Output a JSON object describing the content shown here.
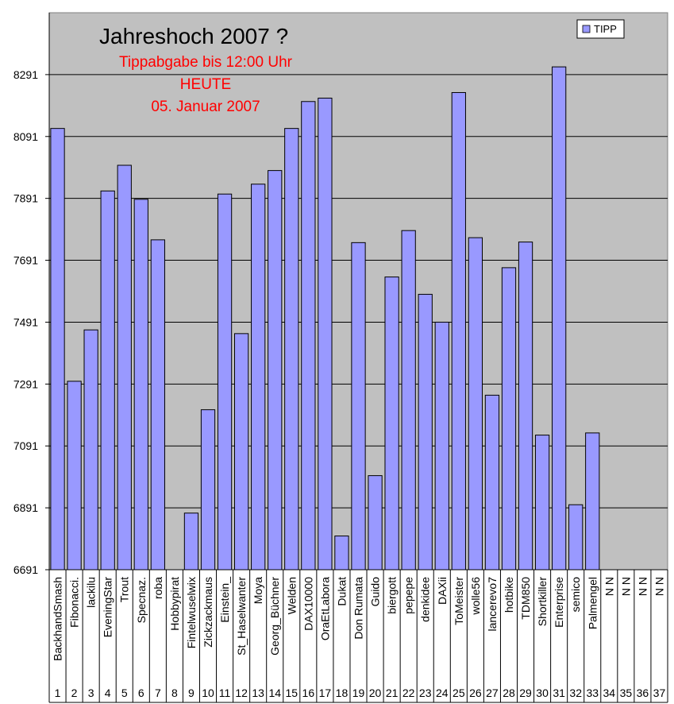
{
  "chart_data": {
    "type": "bar",
    "title": "Jahreshoch 2007 ?",
    "subtitle_lines": [
      "Tippabgabe bis 12:00 Uhr",
      "HEUTE",
      "05. Januar 2007"
    ],
    "legend": {
      "label": "TIPP",
      "position": "top-right"
    },
    "ylim": [
      6691,
      8491
    ],
    "yticks": [
      6691,
      6891,
      7091,
      7291,
      7491,
      7691,
      7891,
      8091,
      8291
    ],
    "grid": true,
    "bar_color": "#9999ff",
    "plot_bg": "#c0c0c0",
    "subtitle_color": "#ff0000",
    "categories": [
      {
        "num": "1",
        "name": "BackhandSmash",
        "value": 8117
      },
      {
        "num": "2",
        "name": "Fibonacci.",
        "value": 7300
      },
      {
        "num": "3",
        "name": "lackilu",
        "value": 7466
      },
      {
        "num": "4",
        "name": "EveningStar",
        "value": 7915
      },
      {
        "num": "5",
        "name": "Trout",
        "value": 7998
      },
      {
        "num": "6",
        "name": "Specnaz.",
        "value": 7888
      },
      {
        "num": "7",
        "name": "roba",
        "value": 7757
      },
      {
        "num": "8",
        "name": "Hobbypirat",
        "value": null
      },
      {
        "num": "9",
        "name": "Fintelwuselwix",
        "value": 6874
      },
      {
        "num": "10",
        "name": "Zickzackmaus",
        "value": 7208
      },
      {
        "num": "11",
        "name": "Einstein_",
        "value": 7905
      },
      {
        "num": "12",
        "name": "St_Haselwanter",
        "value": 7454
      },
      {
        "num": "13",
        "name": "Moya",
        "value": 7937
      },
      {
        "num": "14",
        "name": "Georg_Büchner",
        "value": 7981
      },
      {
        "num": "15",
        "name": "Welden",
        "value": 8117
      },
      {
        "num": "16",
        "name": "DAX10000",
        "value": 8204
      },
      {
        "num": "17",
        "name": "OraEtLabora",
        "value": 8215
      },
      {
        "num": "18",
        "name": "Dukat",
        "value": 6800
      },
      {
        "num": "19",
        "name": "Don Rumata",
        "value": 7748
      },
      {
        "num": "20",
        "name": "Guido",
        "value": 6995
      },
      {
        "num": "21",
        "name": "biergott",
        "value": 7637
      },
      {
        "num": "22",
        "name": "pepepe",
        "value": 7787
      },
      {
        "num": "23",
        "name": "denkidee",
        "value": 7581
      },
      {
        "num": "24",
        "name": "DAXii",
        "value": 7491
      },
      {
        "num": "25",
        "name": "ToMeister",
        "value": 8233
      },
      {
        "num": "26",
        "name": "wolle56",
        "value": 7764
      },
      {
        "num": "27",
        "name": "lancerevo7",
        "value": 7255
      },
      {
        "num": "28",
        "name": "hotbike",
        "value": 7667
      },
      {
        "num": "29",
        "name": "TDM850",
        "value": 7750
      },
      {
        "num": "30",
        "name": "Shortkiller",
        "value": 7126
      },
      {
        "num": "31",
        "name": "Enterprise",
        "value": 8316
      },
      {
        "num": "32",
        "name": "semico",
        "value": 6901
      },
      {
        "num": "33",
        "name": "Palmengel",
        "value": 7133
      },
      {
        "num": "34",
        "name": "N N",
        "value": null
      },
      {
        "num": "35",
        "name": "N N",
        "value": null
      },
      {
        "num": "36",
        "name": "N N",
        "value": null
      },
      {
        "num": "37",
        "name": "N N",
        "value": null
      }
    ]
  }
}
